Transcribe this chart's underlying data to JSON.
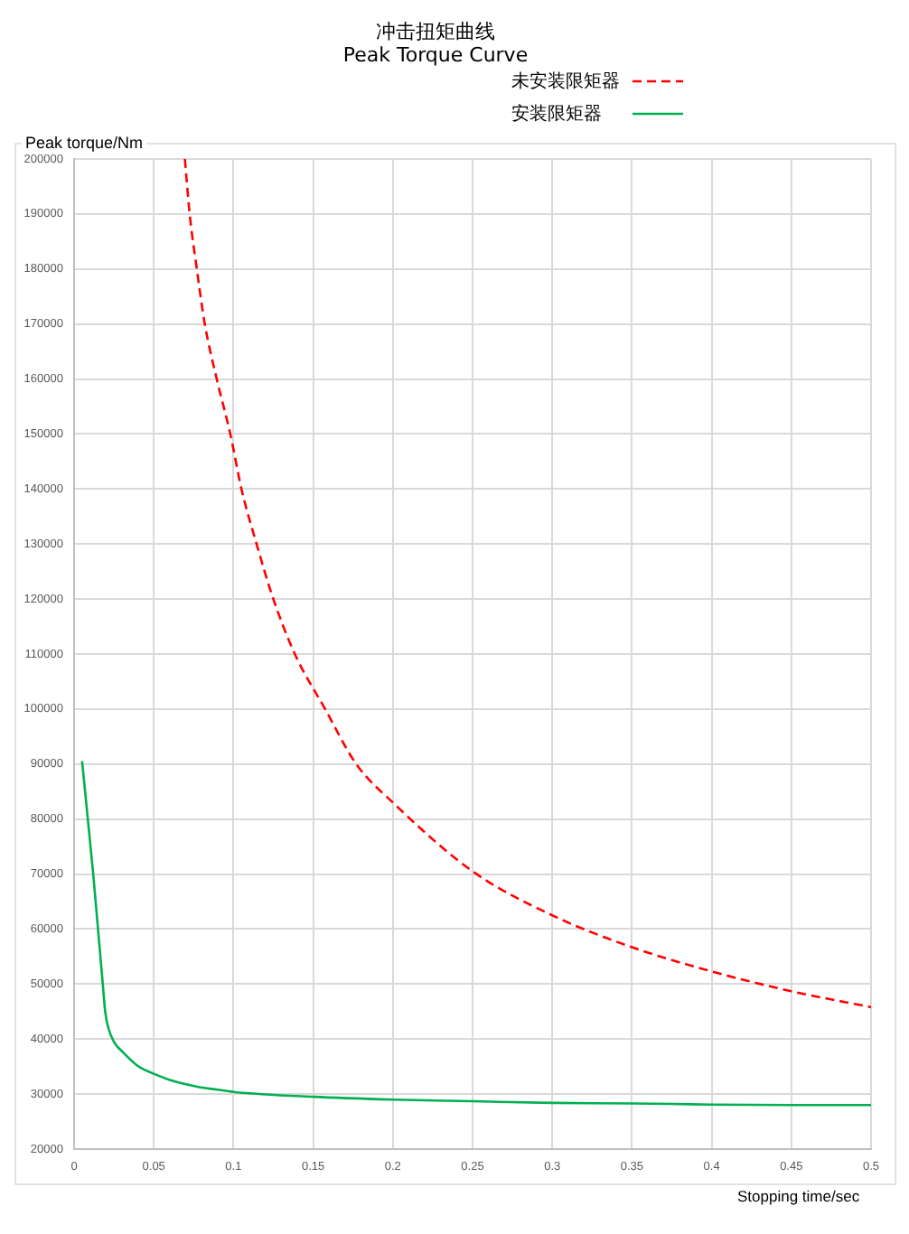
{
  "chart_data": {
    "type": "line",
    "title": "冲击扭矩曲线",
    "subtitle": "Peak Torque Curve",
    "xlabel": "Stopping time/sec",
    "ylabel": "Peak torque/Nm",
    "series": [
      {
        "name": "未安装限矩器",
        "color": "#ff0000",
        "line_style": "dashed",
        "x": [
          0.0695,
          0.0725,
          0.077,
          0.082,
          0.0895,
          0.098,
          0.105,
          0.1145,
          0.125,
          0.1385,
          0.1575,
          0.177,
          0.2,
          0.25,
          0.3,
          0.35,
          0.4,
          0.45,
          0.5
        ],
        "values": [
          200000,
          190000,
          180000,
          170000,
          160000,
          150000,
          140000,
          130000,
          120000,
          110000,
          100000,
          90000,
          83000,
          70500,
          62500,
          56700,
          52300,
          48700,
          45800
        ]
      },
      {
        "name": "安装限矩器",
        "color": "#00b050",
        "line_style": "solid",
        "x": [
          0.005,
          0.012,
          0.015,
          0.018,
          0.0195,
          0.0215,
          0.025,
          0.031,
          0.04,
          0.05,
          0.063,
          0.078,
          0.09,
          0.1,
          0.15,
          0.2,
          0.25,
          0.3,
          0.35,
          0.4,
          0.45,
          0.5
        ],
        "values": [
          90500,
          70000,
          60000,
          50000,
          45000,
          42000,
          39500,
          37500,
          35100,
          33700,
          32300,
          31300,
          30800,
          30400,
          29500,
          29000,
          28700,
          28400,
          28300,
          28100,
          28000,
          28000
        ]
      }
    ],
    "xlim": [
      0,
      0.5
    ],
    "xticks": [
      0,
      0.05,
      0.1,
      0.15,
      0.2,
      0.25,
      0.3,
      0.35,
      0.4,
      0.45,
      0.5
    ],
    "ylim": [
      20000,
      200000
    ],
    "yticks": [
      20000,
      30000,
      40000,
      50000,
      60000,
      70000,
      80000,
      90000,
      100000,
      110000,
      120000,
      130000,
      140000,
      150000,
      160000,
      170000,
      180000,
      190000,
      200000
    ],
    "grid": true,
    "legend": "top right",
    "marker": "none"
  }
}
